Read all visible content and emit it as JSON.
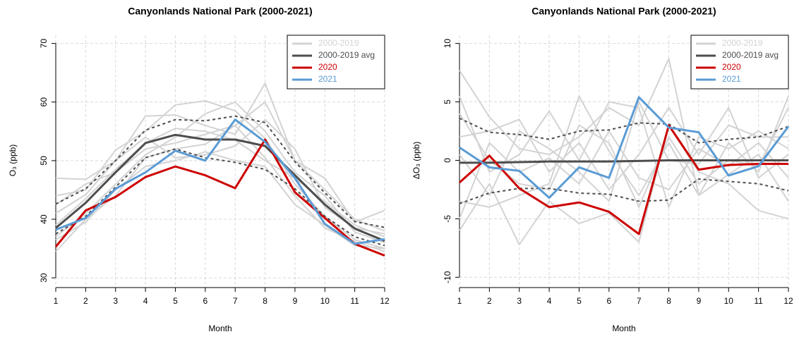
{
  "chart_data": [
    {
      "type": "line",
      "title": "Canyonlands National Park (2000-2021)",
      "xlabel": "Month",
      "ylabel": "O₃ (ppb)",
      "x": [
        1,
        2,
        3,
        4,
        5,
        6,
        7,
        8,
        9,
        10,
        11,
        12
      ],
      "xlim": [
        1,
        12
      ],
      "xticks": [
        1,
        2,
        3,
        4,
        5,
        6,
        7,
        8,
        9,
        10,
        11,
        12
      ],
      "ylim": [
        28.7,
        71.4
      ],
      "yticks": [
        30,
        40,
        50,
        60,
        70
      ],
      "grid": true,
      "legend": "top-right",
      "series": [
        {
          "name": "2000-2019",
          "color": "#d3d3d3",
          "lines": [
            [
              47,
              46.8,
              50,
              57.6,
              57.8,
              56,
              54.5,
              63.2,
              50,
              47,
              39.5,
              41.5
            ],
            [
              44,
              45,
              51.8,
              55,
              59.5,
              60.2,
              58.5,
              53.8,
              46,
              40.5,
              36.5,
              35
            ],
            [
              34.5,
              40,
              44,
              50.5,
              52,
              52.8,
              56,
              50.5,
              44,
              38.5,
              36.2,
              34.5
            ],
            [
              39,
              43.5,
              48.5,
              53,
              55.5,
              55,
              53.5,
              50,
              47,
              43,
              39,
              37
            ],
            [
              41,
              44.2,
              50,
              54,
              50.5,
              51,
              52.5,
              57,
              52,
              42,
              38.5,
              37.5
            ],
            [
              37,
              41,
              46,
              51,
              54,
              58,
              60,
              55,
              48,
              44,
              37.8,
              36
            ],
            [
              42.5,
              46,
              48,
              52,
              53,
              54.5,
              56,
              60,
              50,
              45,
              40,
              38
            ],
            [
              36.5,
              39.5,
              45,
              49,
              50,
              51.5,
              50,
              49,
              42.5,
              39,
              35.5,
              35
            ]
          ]
        },
        {
          "name": "2000-2019 avg",
          "color": "#4d4d4d",
          "values": [
            38.5,
            42.8,
            48,
            53,
            54.4,
            53.6,
            53.6,
            52.5,
            47.5,
            42.5,
            38.4,
            36.3
          ],
          "upper": [
            42.6,
            45.2,
            50,
            55.2,
            57,
            56.8,
            57.6,
            56.5,
            49.8,
            44.5,
            39.6,
            38.6
          ],
          "lower": [
            37.5,
            40.5,
            45.5,
            50.5,
            52,
            50.5,
            49.7,
            48.5,
            45.2,
            40.5,
            37,
            35.5
          ]
        },
        {
          "name": "2020",
          "color": "#cc0000",
          "values": [
            35.3,
            41.5,
            43.8,
            47.2,
            49,
            47.5,
            45.3,
            53.6,
            44.6,
            40.2,
            35.8,
            33.8
          ]
        },
        {
          "name": "2021",
          "color": "#5a9bd5",
          "values": [
            38.2,
            40.2,
            45.2,
            48,
            51.7,
            50,
            57,
            53.2,
            47,
            39.2,
            35.8,
            36.6
          ]
        }
      ]
    },
    {
      "type": "line",
      "title": "Canyonlands National Park (2000-2021)",
      "xlabel": "Month",
      "ylabel": "ΔO₃ (ppb)",
      "x": [
        1,
        2,
        3,
        4,
        5,
        6,
        7,
        8,
        9,
        10,
        11,
        12
      ],
      "xlim": [
        1,
        12
      ],
      "xticks": [
        1,
        2,
        3,
        4,
        5,
        6,
        7,
        8,
        9,
        10,
        11,
        12
      ],
      "ylim": [
        -10.7,
        10.7
      ],
      "yticks": [
        -10,
        -5,
        0,
        5,
        10
      ],
      "grid": true,
      "legend": "top-right",
      "series": [
        {
          "name": "2000-2019",
          "color": "#d3d3d3",
          "lines": [
            [
              7.7,
              3.7,
              1,
              0.5,
              2,
              4.5,
              3,
              8.7,
              -3,
              1.5,
              -1,
              5.5
            ],
            [
              -6,
              -2,
              -7.2,
              -3.5,
              -5.4,
              -4.5,
              -7,
              3,
              -1,
              -2,
              -4.3,
              -5
            ],
            [
              5.5,
              -1,
              0.5,
              4.2,
              0,
              5,
              4.5,
              -4,
              2,
              1,
              2.5,
              1
            ],
            [
              -3.5,
              -4,
              -3,
              -2,
              5.5,
              0.8,
              -3,
              1.5,
              -3,
              -1.2,
              0.5,
              -3.5
            ],
            [
              2,
              2.5,
              3.5,
              -1,
              1.5,
              -2.5,
              0.5,
              4.5,
              0.5,
              4.5,
              -1.5,
              0.5
            ],
            [
              -5,
              1.5,
              -1,
              0.2,
              -2,
              2.5,
              -1.5,
              -2.5,
              1,
              -0.5,
              1.5,
              -1.5
            ],
            [
              0.5,
              -3,
              2.5,
              1,
              -1,
              -3.5,
              5,
              0,
              -0.3,
              3,
              2,
              2
            ],
            [
              4,
              0,
              -2,
              -2.5,
              3,
              1.5,
              -4,
              2,
              -2,
              0,
              -0.5,
              4.5
            ]
          ]
        },
        {
          "name": "2000-2019 avg",
          "color": "#4d4d4d",
          "values": [
            -0.2,
            -0.2,
            -0.15,
            -0.1,
            -0.1,
            -0.1,
            -0.05,
            0,
            0,
            0,
            0,
            0
          ],
          "upper": [
            3.6,
            2.4,
            2.2,
            1.8,
            2.5,
            2.6,
            3.2,
            3.1,
            1.5,
            1.8,
            2,
            2.9
          ],
          "lower": [
            -3.7,
            -2.8,
            -2.4,
            -2.4,
            -2.8,
            -2.9,
            -3.5,
            -3.4,
            -1.6,
            -1.8,
            -2,
            -2.6
          ]
        },
        {
          "name": "2020",
          "color": "#cc0000",
          "values": [
            -1.9,
            0.4,
            -2.4,
            -4,
            -3.6,
            -4.4,
            -6.3,
            3,
            -0.8,
            -0.4,
            -0.3,
            -0.3
          ]
        },
        {
          "name": "2021",
          "color": "#5a9bd5",
          "values": [
            1.1,
            -0.6,
            -0.9,
            -3.2,
            -0.6,
            -1.5,
            5.4,
            2.8,
            2.4,
            -1.3,
            -0.5,
            2.9
          ]
        }
      ]
    }
  ]
}
